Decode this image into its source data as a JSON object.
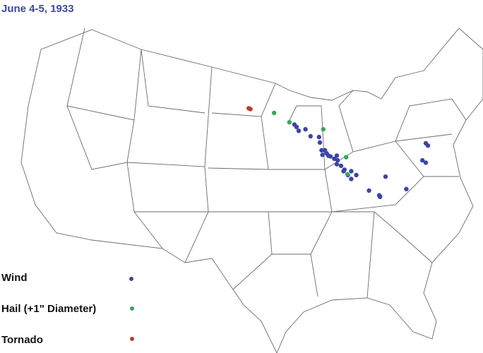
{
  "title": "June 4-5, 1933",
  "legend": [
    {
      "label": "Wind",
      "color": "#3b44a8"
    },
    {
      "label": "Hail (+1\" Diameter)",
      "color": "#3aa55a"
    },
    {
      "label": "Tornado",
      "color": "#c0392b"
    }
  ],
  "reports": {
    "tornado": [
      [
        -96.2,
        45.6
      ],
      [
        -96.0,
        45.5
      ]
    ],
    "hail": [
      [
        -93.2,
        45.0
      ],
      [
        -91.4,
        43.8
      ],
      [
        -87.4,
        42.9
      ],
      [
        -84.7,
        39.3
      ],
      [
        -84.55,
        37.1
      ]
    ],
    "wind": [
      [
        -90.8,
        43.5
      ],
      [
        -90.55,
        43.2
      ],
      [
        -90.3,
        42.7
      ],
      [
        -89.5,
        42.9
      ],
      [
        -88.9,
        42.0
      ],
      [
        -87.9,
        41.9
      ],
      [
        -87.8,
        41.2
      ],
      [
        -87.6,
        40.2
      ],
      [
        -87.2,
        40.2
      ],
      [
        -87.0,
        39.8
      ],
      [
        -87.5,
        39.6
      ],
      [
        -86.8,
        39.5
      ],
      [
        -86.55,
        39.4
      ],
      [
        -85.8,
        39.5
      ],
      [
        -86.1,
        39.1
      ],
      [
        -85.7,
        38.9
      ],
      [
        -85.8,
        38.4
      ],
      [
        -85.3,
        38.2
      ],
      [
        -84.9,
        37.7
      ],
      [
        -85.0,
        37.5
      ],
      [
        -84.1,
        37.5
      ],
      [
        -84.5,
        37.0
      ],
      [
        -84.1,
        36.5
      ],
      [
        -83.5,
        37.0
      ],
      [
        -80.05,
        36.8
      ],
      [
        -82.0,
        35.0
      ],
      [
        -80.8,
        34.4
      ],
      [
        -80.7,
        34.2
      ],
      [
        -77.6,
        35.2
      ],
      [
        -75.3,
        41.1
      ],
      [
        -75.05,
        40.8
      ],
      [
        -75.7,
        38.9
      ],
      [
        -75.3,
        38.6
      ]
    ]
  }
}
